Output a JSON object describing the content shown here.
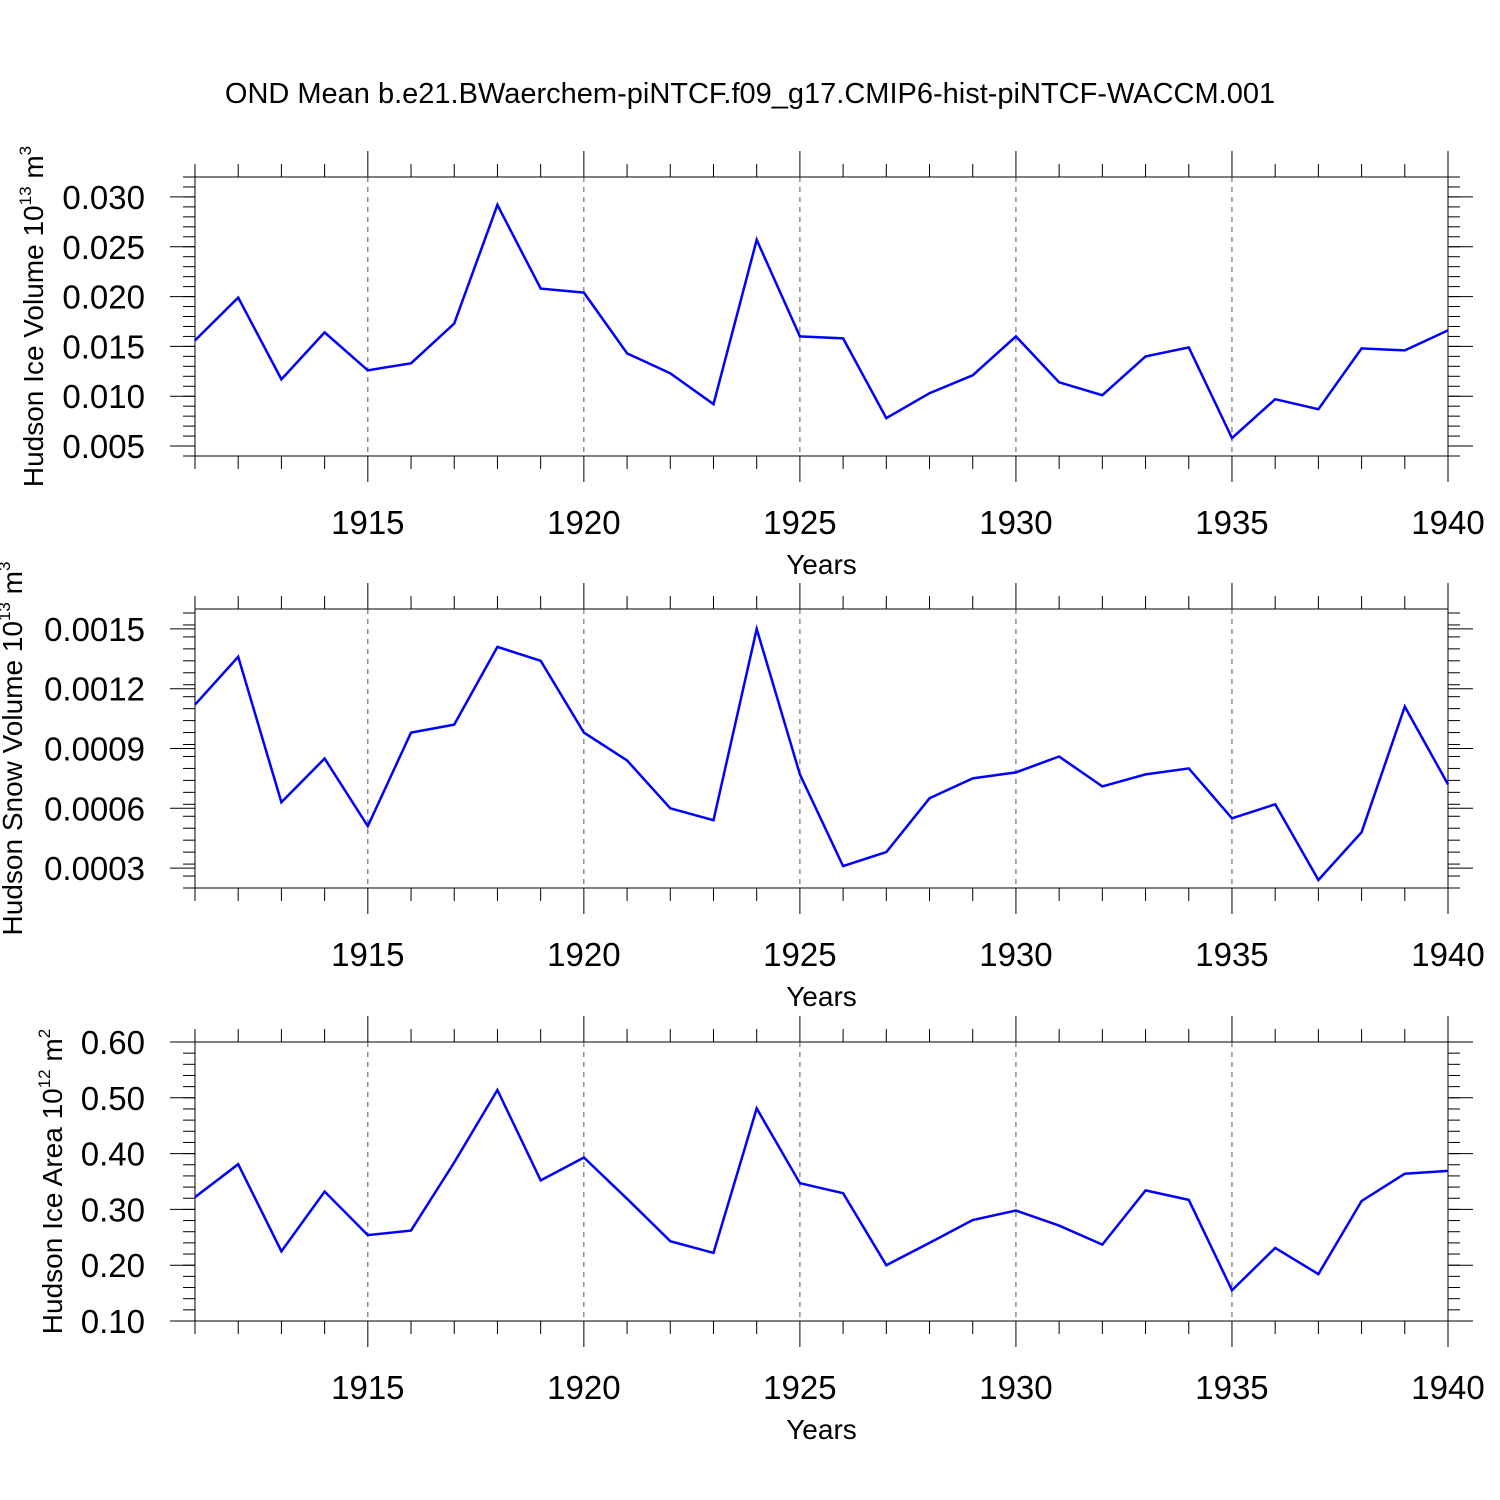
{
  "title": "OND Mean b.e21.BWaerchem-piNTCF.f09_g17.CMIP6-hist-piNTCF-WACCM.001",
  "colors": {
    "line": "#0000ff",
    "axis": "#000000",
    "grid": "#555555"
  },
  "chart_data": [
    {
      "type": "line",
      "ylabel_main": "Hudson Ice Volume 10",
      "ylabel_sup": "13",
      "ylabel_unit": " m",
      "ylabel_unit_sup": "3",
      "xlabel": "Years",
      "xlim": [
        1911,
        1940
      ],
      "ylim": [
        0.004,
        0.032
      ],
      "grid": "vertical dashed at labeled years",
      "xticks": [
        "1915",
        "1920",
        "1925",
        "1930",
        "1935",
        "1940"
      ],
      "yticks": [
        "0.030",
        "0.025",
        "0.020",
        "0.015",
        "0.010",
        "0.005"
      ],
      "ytick_values": [
        0.03,
        0.025,
        0.02,
        0.015,
        0.01,
        0.005
      ],
      "x": [
        1911,
        1912,
        1913,
        1914,
        1915,
        1916,
        1917,
        1918,
        1919,
        1920,
        1921,
        1922,
        1923,
        1924,
        1925,
        1926,
        1927,
        1928,
        1929,
        1930,
        1931,
        1932,
        1933,
        1934,
        1935,
        1936,
        1937,
        1938,
        1939,
        1940
      ],
      "values": [
        0.0156,
        0.0199,
        0.0117,
        0.0164,
        0.0126,
        0.0133,
        0.0173,
        0.0292,
        0.0208,
        0.0204,
        0.0143,
        0.0123,
        0.0092,
        0.0257,
        0.016,
        0.0158,
        0.0078,
        0.0103,
        0.0121,
        0.016,
        0.0114,
        0.0101,
        0.014,
        0.0149,
        0.0058,
        0.0097,
        0.0087,
        0.0148,
        0.0146,
        0.0166
      ]
    },
    {
      "type": "line",
      "ylabel_main": "Hudson Snow Volume 10",
      "ylabel_sup": "13",
      "ylabel_unit": " m",
      "ylabel_unit_sup": "3",
      "xlabel": "Years",
      "xlim": [
        1911,
        1940
      ],
      "ylim": [
        0.0002,
        0.0016
      ],
      "grid": "vertical dashed at labeled years",
      "xticks": [
        "1915",
        "1920",
        "1925",
        "1930",
        "1935",
        "1940"
      ],
      "yticks": [
        "0.0015",
        "0.0012",
        "0.0009",
        "0.0006",
        "0.0003"
      ],
      "ytick_values": [
        0.0015,
        0.0012,
        0.0009,
        0.0006,
        0.0003
      ],
      "x": [
        1911,
        1912,
        1913,
        1914,
        1915,
        1916,
        1917,
        1918,
        1919,
        1920,
        1921,
        1922,
        1923,
        1924,
        1925,
        1926,
        1927,
        1928,
        1929,
        1930,
        1931,
        1932,
        1933,
        1934,
        1935,
        1936,
        1937,
        1938,
        1939,
        1940
      ],
      "values": [
        0.00112,
        0.00136,
        0.00063,
        0.00085,
        0.00051,
        0.00098,
        0.00102,
        0.00141,
        0.00134,
        0.00098,
        0.00084,
        0.0006,
        0.00054,
        0.0015,
        0.00077,
        0.00031,
        0.00038,
        0.00065,
        0.00075,
        0.00078,
        0.00086,
        0.00071,
        0.00077,
        0.0008,
        0.00055,
        0.00062,
        0.00024,
        0.00048,
        0.00111,
        0.00072
      ]
    },
    {
      "type": "line",
      "ylabel_main": "Hudson Ice Area 10",
      "ylabel_sup": "12",
      "ylabel_unit": " m",
      "ylabel_unit_sup": "2",
      "xlabel": "Years",
      "xlim": [
        1911,
        1940
      ],
      "ylim": [
        0.1,
        0.6
      ],
      "grid": "vertical dashed at labeled years",
      "xticks": [
        "1915",
        "1920",
        "1925",
        "1930",
        "1935",
        "1940"
      ],
      "yticks": [
        "0.60",
        "0.50",
        "0.40",
        "0.30",
        "0.20",
        "0.10"
      ],
      "ytick_values": [
        0.6,
        0.5,
        0.4,
        0.3,
        0.2,
        0.1
      ],
      "x": [
        1911,
        1912,
        1913,
        1914,
        1915,
        1916,
        1917,
        1918,
        1919,
        1920,
        1921,
        1922,
        1923,
        1924,
        1925,
        1926,
        1927,
        1928,
        1929,
        1930,
        1931,
        1932,
        1933,
        1934,
        1935,
        1936,
        1937,
        1938,
        1939,
        1940
      ],
      "values": [
        0.322,
        0.381,
        0.225,
        0.332,
        0.254,
        0.262,
        0.384,
        0.514,
        0.352,
        0.393,
        0.319,
        0.243,
        0.222,
        0.481,
        0.347,
        0.329,
        0.2,
        0.24,
        0.281,
        0.298,
        0.271,
        0.237,
        0.334,
        0.317,
        0.155,
        0.231,
        0.184,
        0.315,
        0.364,
        0.369
      ]
    }
  ]
}
